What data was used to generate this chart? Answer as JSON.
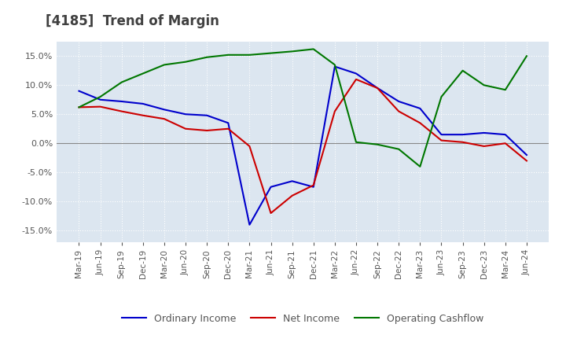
{
  "title": "[4185]  Trend of Margin",
  "title_color": "#404040",
  "background_color": "#ffffff",
  "plot_background_color": "#dce6f0",
  "grid_color": "#ffffff",
  "ylim": [
    -0.17,
    0.175
  ],
  "yticks": [
    -0.15,
    -0.1,
    -0.05,
    0.0,
    0.05,
    0.1,
    0.15
  ],
  "x_labels": [
    "Mar-19",
    "Jun-19",
    "Sep-19",
    "Dec-19",
    "Mar-20",
    "Jun-20",
    "Sep-20",
    "Dec-20",
    "Mar-21",
    "Jun-21",
    "Sep-21",
    "Dec-21",
    "Mar-22",
    "Jun-22",
    "Sep-22",
    "Dec-22",
    "Mar-23",
    "Jun-23",
    "Sep-23",
    "Dec-23",
    "Mar-24",
    "Jun-24"
  ],
  "ordinary_income": [
    0.09,
    0.075,
    0.072,
    0.068,
    0.058,
    0.05,
    0.048,
    0.035,
    -0.14,
    -0.075,
    -0.065,
    -0.075,
    0.132,
    0.12,
    0.095,
    0.072,
    0.06,
    0.015,
    0.015,
    0.018,
    0.015,
    -0.02
  ],
  "net_income": [
    0.062,
    0.063,
    0.055,
    0.048,
    0.042,
    0.025,
    0.022,
    0.025,
    -0.005,
    -0.12,
    -0.09,
    -0.072,
    0.055,
    0.11,
    0.095,
    0.055,
    0.035,
    0.005,
    0.002,
    -0.005,
    0.0,
    -0.03
  ],
  "operating_cashflow": [
    0.062,
    0.08,
    0.105,
    0.12,
    0.135,
    0.14,
    0.148,
    0.152,
    0.152,
    0.155,
    0.158,
    0.162,
    0.135,
    0.002,
    -0.002,
    -0.01,
    -0.04,
    0.08,
    0.125,
    0.1,
    0.092,
    0.15
  ],
  "ordinary_color": "#0000cc",
  "net_income_color": "#cc0000",
  "cashflow_color": "#007700",
  "legend_labels": [
    "Ordinary Income",
    "Net Income",
    "Operating Cashflow"
  ]
}
